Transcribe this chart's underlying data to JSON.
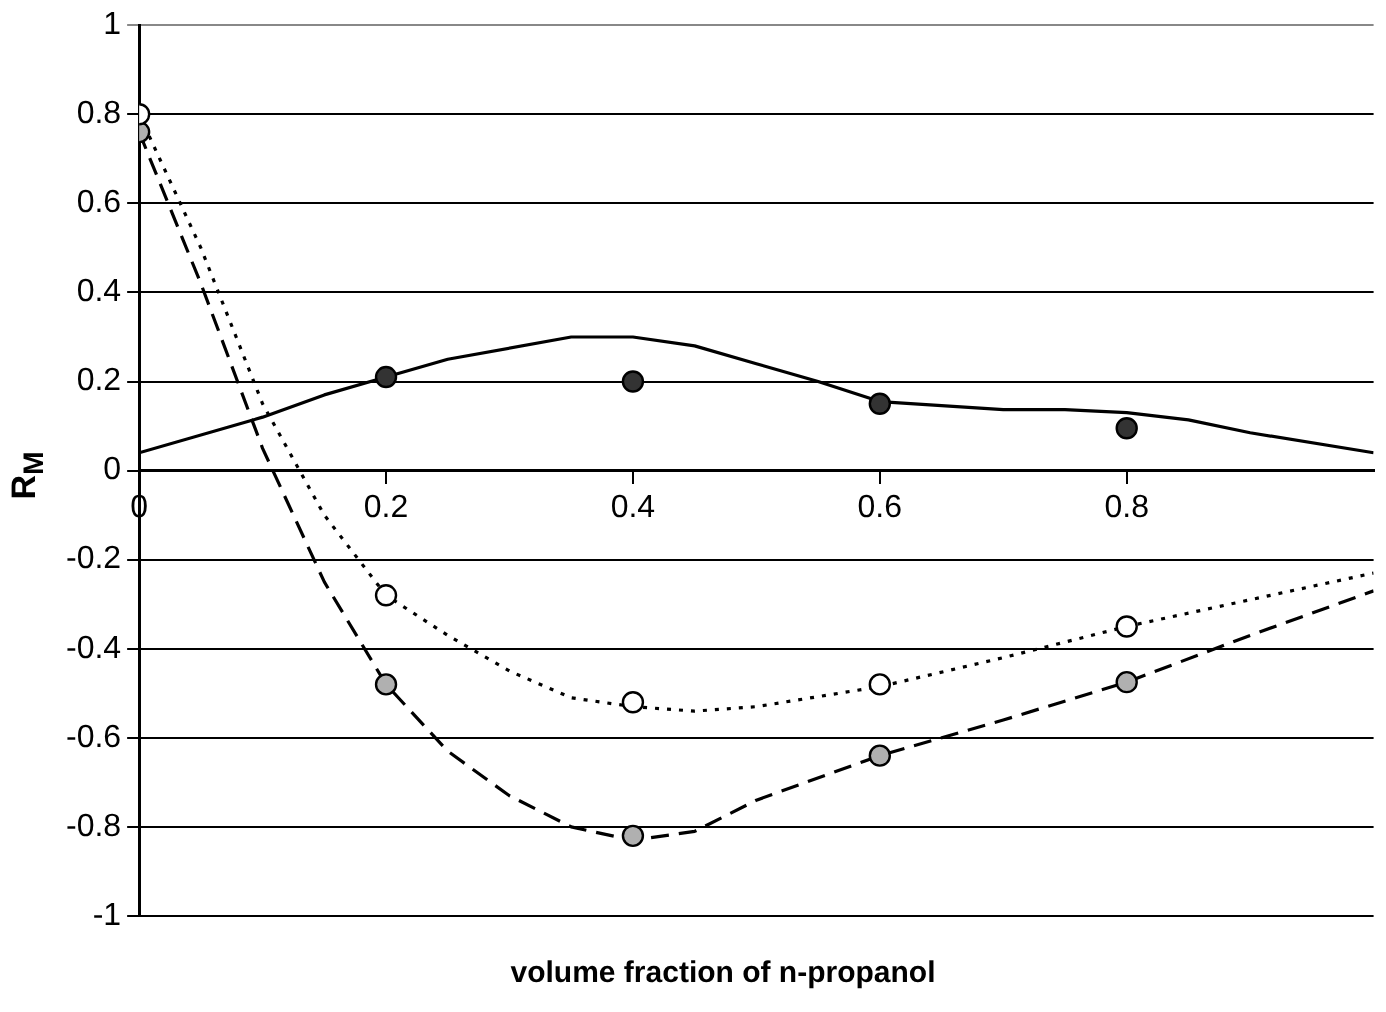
{
  "chart_data": {
    "type": "scatter",
    "xlabel": "volume fraction of n-propanol",
    "ylabel": "R$_{M}$",
    "xlim": [
      0,
      1
    ],
    "xticks": [
      0,
      0.2,
      0.4,
      0.6,
      0.8
    ],
    "ylim": [
      -1,
      1
    ],
    "yticks": [
      -1,
      -0.8,
      -0.6,
      -0.4,
      -0.2,
      0,
      0.2,
      0.4,
      0.6,
      0.8,
      1
    ],
    "grid": "y",
    "legend": false,
    "series": [
      {
        "type": "line",
        "color": "#000000",
        "line_style": "solid",
        "marker": "none",
        "x": [
          0,
          0.1,
          0.15,
          0.2,
          0.25,
          0.35,
          0.4,
          0.45,
          0.5,
          0.55,
          0.6,
          0.7,
          0.75,
          0.8,
          0.85,
          0.9,
          1
        ],
        "values": [
          0.04,
          0.12,
          0.17,
          0.21,
          0.25,
          0.3,
          0.3,
          0.28,
          0.24,
          0.2,
          0.155,
          0.137,
          0.137,
          0.13,
          0.114,
          0.085,
          0.04
        ]
      },
      {
        "type": "line",
        "color": "#000000",
        "line_style": "dotted",
        "marker": "none",
        "x": [
          0,
          0.05,
          0.1,
          0.15,
          0.2,
          0.25,
          0.3,
          0.35,
          0.4,
          0.45,
          0.5,
          0.6,
          0.7,
          0.8,
          0.9,
          1
        ],
        "values": [
          0.8,
          0.5,
          0.15,
          -0.1,
          -0.28,
          -0.37,
          -0.45,
          -0.51,
          -0.53,
          -0.54,
          -0.53,
          -0.485,
          -0.42,
          -0.35,
          -0.29,
          -0.23
        ]
      },
      {
        "type": "line",
        "color": "#000000",
        "line_style": "dashed",
        "marker": "none",
        "x": [
          0,
          0.05,
          0.1,
          0.15,
          0.2,
          0.25,
          0.3,
          0.35,
          0.4,
          0.45,
          0.5,
          0.6,
          0.7,
          0.8,
          0.9,
          1
        ],
        "values": [
          0.76,
          0.42,
          0.05,
          -0.25,
          -0.48,
          -0.63,
          -0.73,
          -0.8,
          -0.83,
          -0.81,
          -0.74,
          -0.64,
          -0.56,
          -0.475,
          -0.37,
          -0.27
        ]
      },
      {
        "type": "scatter",
        "color": "#333333",
        "marker": "circle",
        "x": [
          0.2,
          0.4,
          0.6,
          0.8
        ],
        "values": [
          0.21,
          0.2,
          0.15,
          0.095
        ]
      },
      {
        "type": "scatter",
        "color": "#ffffff",
        "marker": "circle",
        "x": [
          0,
          0.2,
          0.4,
          0.6,
          0.8
        ],
        "values": [
          0.8,
          -0.28,
          -0.52,
          -0.48,
          -0.35
        ]
      },
      {
        "type": "scatter",
        "color": "#b0b0b0",
        "marker": "circle",
        "x": [
          0,
          0.2,
          0.4,
          0.6,
          0.8
        ],
        "values": [
          0.76,
          -0.48,
          -0.82,
          -0.64,
          -0.475
        ]
      }
    ]
  }
}
